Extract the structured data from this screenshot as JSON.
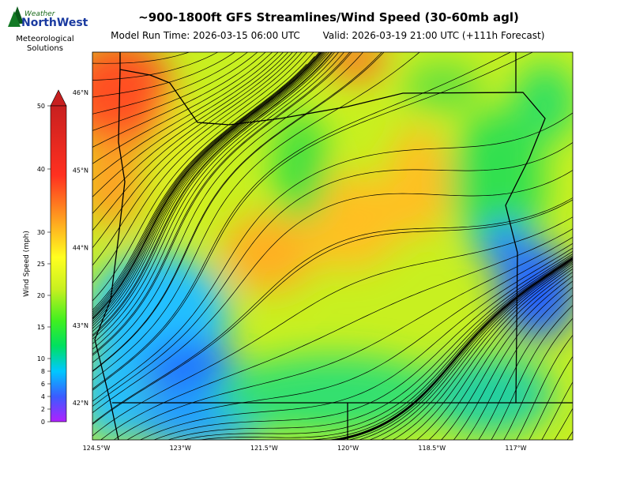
{
  "header": {
    "logo_top": "Weather",
    "logo_main": "NorthWest",
    "logo_sub": "Meteorological Solutions",
    "title": "~900-1800ft GFS Streamlines/Wind Speed (30-60mb agl)",
    "model_run": "Model Run Time: 2026-03-15 06:00 UTC",
    "valid": "Valid: 2026-03-19 21:00 UTC  (+111h Forecast)"
  },
  "colorbar": {
    "label": "Wind Speed (mph)",
    "lim": [
      0,
      50
    ],
    "ticks": [
      0,
      2,
      4,
      6,
      8,
      10,
      15,
      20,
      25,
      30,
      40,
      50
    ]
  },
  "map": {
    "lat_labels": [
      {
        "value": 46,
        "label": "46°N"
      },
      {
        "value": 45,
        "label": "45°N"
      },
      {
        "value": 44,
        "label": "44°N"
      },
      {
        "value": 43,
        "label": "43°N"
      },
      {
        "value": 42,
        "label": "42°N"
      }
    ],
    "lon_labels": [
      {
        "value": 124.5,
        "label": "124.5°W"
      },
      {
        "value": 123,
        "label": "123°W"
      },
      {
        "value": 121.5,
        "label": "121.5°W"
      },
      {
        "value": 120,
        "label": "120°W"
      },
      {
        "value": 118.5,
        "label": "118.5°W"
      },
      {
        "value": 117,
        "label": "117°W"
      }
    ]
  }
}
